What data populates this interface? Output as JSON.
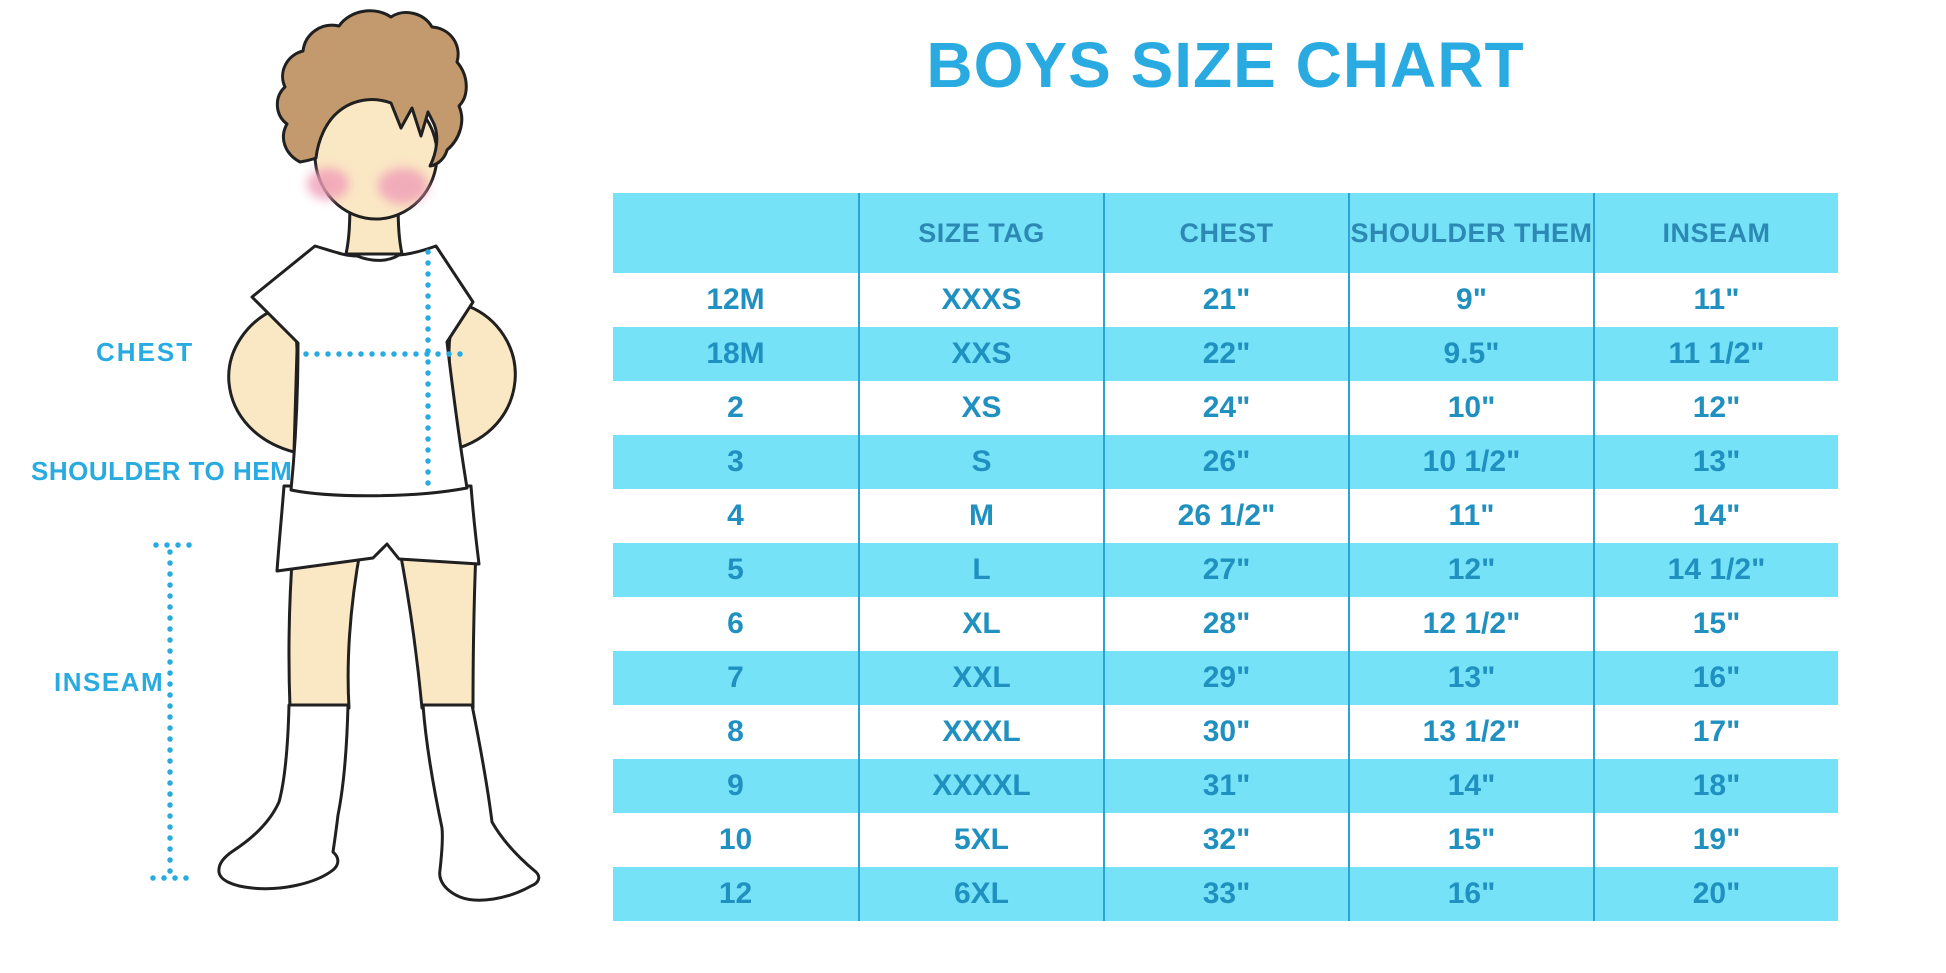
{
  "title": "BOYS SIZE CHART",
  "figure_labels": {
    "chest": "CHEST",
    "shoulder_to_hem": "SHOULDER TO HEM",
    "inseam": "INSEAM"
  },
  "colors": {
    "accent": "#29ABE2",
    "row_band": "#76E2F8",
    "header_text": "#2C89B4",
    "cell_text": "#1F90C0",
    "divider": "#2BA3D4",
    "hair": "#C29A6E",
    "skin": "#FAE7C4",
    "blush": "#F09EB8",
    "outline": "#202020"
  },
  "chart_data": {
    "type": "table",
    "title": "BOYS SIZE CHART",
    "columns": [
      "",
      "SIZE TAG",
      "CHEST",
      "SHOULDER THEM",
      "INSEAM"
    ],
    "rows": [
      [
        "12M",
        "XXXS",
        "21\"",
        "9\"",
        "11\""
      ],
      [
        "18M",
        "XXS",
        "22\"",
        "9.5\"",
        "11 1/2\""
      ],
      [
        "2",
        "XS",
        "24\"",
        "10\"",
        "12\""
      ],
      [
        "3",
        "S",
        "26\"",
        "10 1/2\"",
        "13\""
      ],
      [
        "4",
        "M",
        "26 1/2\"",
        "11\"",
        "14\""
      ],
      [
        "5",
        "L",
        "27\"",
        "12\"",
        "14 1/2\""
      ],
      [
        "6",
        "XL",
        "28\"",
        "12 1/2\"",
        "15\""
      ],
      [
        "7",
        "XXL",
        "29\"",
        "13\"",
        "16\""
      ],
      [
        "8",
        "XXXL",
        "30\"",
        "13 1/2\"",
        "17\""
      ],
      [
        "9",
        "XXXXL",
        "31\"",
        "14\"",
        "18\""
      ],
      [
        "10",
        "5XL",
        "32\"",
        "15\"",
        "19\""
      ],
      [
        "12",
        "6XL",
        "33\"",
        "16\"",
        "20\""
      ]
    ],
    "layout": {
      "header_fill": "cyan band",
      "row_striping": "white / cyan alternating starting with white",
      "grid": "vertical column dividers only"
    }
  }
}
